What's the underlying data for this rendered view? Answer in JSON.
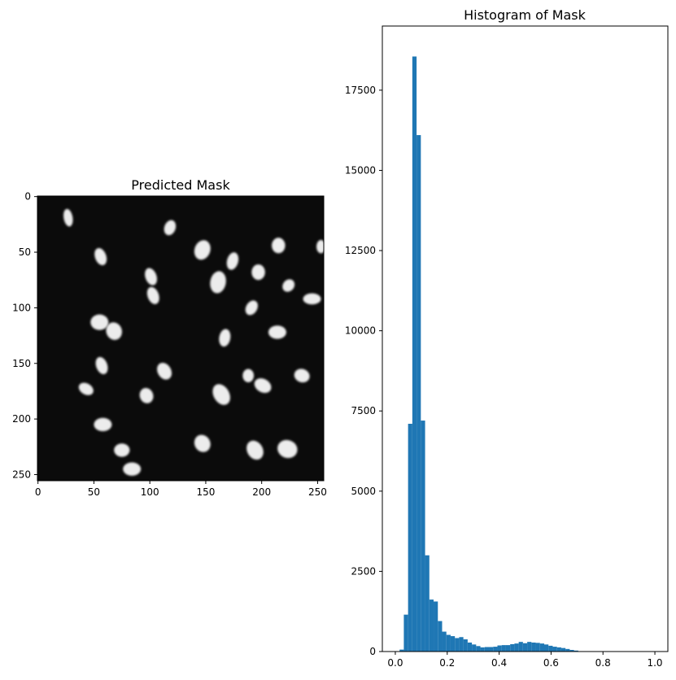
{
  "chart_data": [
    {
      "type": "image",
      "title": "Predicted Mask",
      "xlim": [
        0,
        255
      ],
      "ylim": [
        255,
        0
      ],
      "xticks": [
        0,
        50,
        100,
        150,
        200,
        250
      ],
      "yticks": [
        0,
        50,
        100,
        150,
        200,
        250
      ],
      "colormap": "gray",
      "background_color": "#0b0b0b",
      "blob_color": "#ececec",
      "blobs": [
        {
          "x": 27,
          "y": 19,
          "rx": 4,
          "ry": 8,
          "angle": -10
        },
        {
          "x": 118,
          "y": 28,
          "rx": 5,
          "ry": 7,
          "angle": 20
        },
        {
          "x": 147,
          "y": 48,
          "rx": 7,
          "ry": 9,
          "angle": 20
        },
        {
          "x": 215,
          "y": 44,
          "rx": 6,
          "ry": 7,
          "angle": 0
        },
        {
          "x": 253,
          "y": 45,
          "rx": 4,
          "ry": 6,
          "angle": 0
        },
        {
          "x": 56,
          "y": 54,
          "rx": 5,
          "ry": 8,
          "angle": -20
        },
        {
          "x": 174,
          "y": 58,
          "rx": 5,
          "ry": 8,
          "angle": 15
        },
        {
          "x": 197,
          "y": 68,
          "rx": 6,
          "ry": 7,
          "angle": 0
        },
        {
          "x": 101,
          "y": 72,
          "rx": 5,
          "ry": 8,
          "angle": -20
        },
        {
          "x": 161,
          "y": 77,
          "rx": 7,
          "ry": 10,
          "angle": 10
        },
        {
          "x": 224,
          "y": 80,
          "rx": 5,
          "ry": 6,
          "angle": 40
        },
        {
          "x": 103,
          "y": 89,
          "rx": 5,
          "ry": 8,
          "angle": -20
        },
        {
          "x": 245,
          "y": 92,
          "rx": 8,
          "ry": 5,
          "angle": 0
        },
        {
          "x": 191,
          "y": 100,
          "rx": 5,
          "ry": 7,
          "angle": 30
        },
        {
          "x": 55,
          "y": 113,
          "rx": 8,
          "ry": 7,
          "angle": 0
        },
        {
          "x": 68,
          "y": 121,
          "rx": 7,
          "ry": 8,
          "angle": -20
        },
        {
          "x": 214,
          "y": 122,
          "rx": 8,
          "ry": 6,
          "angle": 0
        },
        {
          "x": 167,
          "y": 127,
          "rx": 5,
          "ry": 8,
          "angle": 10
        },
        {
          "x": 57,
          "y": 152,
          "rx": 5,
          "ry": 8,
          "angle": -20
        },
        {
          "x": 113,
          "y": 157,
          "rx": 6,
          "ry": 8,
          "angle": -30
        },
        {
          "x": 236,
          "y": 161,
          "rx": 7,
          "ry": 6,
          "angle": 20
        },
        {
          "x": 188,
          "y": 161,
          "rx": 5,
          "ry": 6,
          "angle": 0
        },
        {
          "x": 201,
          "y": 170,
          "rx": 8,
          "ry": 6,
          "angle": 30
        },
        {
          "x": 43,
          "y": 173,
          "rx": 7,
          "ry": 5,
          "angle": 30
        },
        {
          "x": 97,
          "y": 179,
          "rx": 6,
          "ry": 7,
          "angle": -20
        },
        {
          "x": 164,
          "y": 178,
          "rx": 7,
          "ry": 10,
          "angle": -30
        },
        {
          "x": 58,
          "y": 205,
          "rx": 8,
          "ry": 6,
          "angle": 0
        },
        {
          "x": 147,
          "y": 222,
          "rx": 7,
          "ry": 8,
          "angle": -30
        },
        {
          "x": 194,
          "y": 228,
          "rx": 7,
          "ry": 9,
          "angle": -30
        },
        {
          "x": 223,
          "y": 227,
          "rx": 9,
          "ry": 8,
          "angle": 20
        },
        {
          "x": 75,
          "y": 228,
          "rx": 7,
          "ry": 6,
          "angle": 0
        },
        {
          "x": 84,
          "y": 245,
          "rx": 8,
          "ry": 6,
          "angle": 0
        }
      ]
    },
    {
      "type": "bar",
      "title": "Histogram of Mask",
      "xlim": [
        -0.05,
        1.05
      ],
      "ylim": [
        0,
        19500
      ],
      "xticks": [
        0.0,
        0.2,
        0.4,
        0.6,
        0.8,
        1.0
      ],
      "xtick_labels": [
        "0.0",
        "0.2",
        "0.4",
        "0.6",
        "0.8",
        "1.0"
      ],
      "yticks": [
        0,
        2500,
        5000,
        7500,
        10000,
        12500,
        15000,
        17500
      ],
      "ytick_labels": [
        "0",
        "2500",
        "5000",
        "7500",
        "10000",
        "12500",
        "15000",
        "17500"
      ],
      "bin_edges_start": 0.0,
      "bin_width": 0.01639,
      "values": [
        0,
        60,
        1150,
        7100,
        18550,
        16100,
        7200,
        3000,
        1620,
        1560,
        950,
        620,
        520,
        480,
        420,
        450,
        380,
        280,
        220,
        170,
        130,
        140,
        140,
        150,
        190,
        200,
        200,
        230,
        250,
        300,
        260,
        300,
        280,
        270,
        250,
        220,
        180,
        150,
        130,
        110,
        80,
        50,
        30,
        10,
        5,
        2,
        1,
        0,
        0,
        0,
        0,
        0,
        0,
        0,
        0,
        0,
        0,
        0,
        0,
        0,
        0
      ],
      "bar_color": "#1f77b4"
    }
  ]
}
